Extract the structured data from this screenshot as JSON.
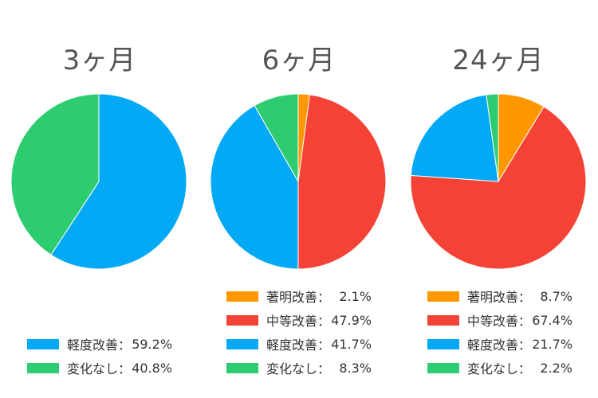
{
  "chart_data": [
    {
      "type": "pie",
      "title": "3ヶ月",
      "slices": [
        {
          "label": "軽度改善",
          "value": 59.2,
          "display": "59.2%",
          "color": "#03a9f4"
        },
        {
          "label": "変化なし",
          "value": 40.8,
          "display": "40.8%",
          "color": "#2ecc71"
        }
      ]
    },
    {
      "type": "pie",
      "title": "6ヶ月",
      "slices": [
        {
          "label": "著明改善",
          "value": 2.1,
          "display": "2.1%",
          "color": "#ff9800"
        },
        {
          "label": "中等改善",
          "value": 47.9,
          "display": "47.9%",
          "color": "#f44336"
        },
        {
          "label": "軽度改善",
          "value": 41.7,
          "display": "41.7%",
          "color": "#03a9f4"
        },
        {
          "label": "変化なし",
          "value": 8.3,
          "display": "8.3%",
          "color": "#2ecc71"
        }
      ]
    },
    {
      "type": "pie",
      "title": "24ヶ月",
      "slices": [
        {
          "label": "著明改善",
          "value": 8.7,
          "display": "8.7%",
          "color": "#ff9800"
        },
        {
          "label": "中等改善",
          "value": 67.4,
          "display": "67.4%",
          "color": "#f44336"
        },
        {
          "label": "軽度改善",
          "value": 21.7,
          "display": "21.7%",
          "color": "#03a9f4"
        },
        {
          "label": "変化なし",
          "value": 2.2,
          "display": "2.2%",
          "color": "#2ecc71"
        }
      ]
    }
  ],
  "legend_separator": "："
}
